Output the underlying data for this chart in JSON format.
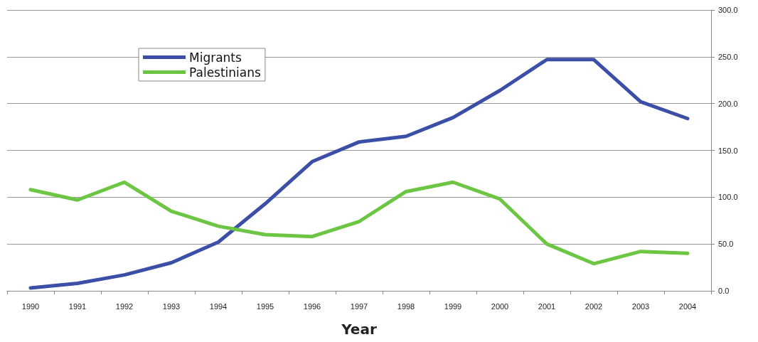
{
  "chart_data": {
    "type": "line",
    "xlabel": "Year",
    "categories": [
      "1990",
      "1991",
      "1992",
      "1993",
      "1994",
      "1995",
      "1996",
      "1997",
      "1998",
      "1999",
      "2000",
      "2001",
      "2002",
      "2003",
      "2004"
    ],
    "series": [
      {
        "name": "Migrants",
        "color": "#3b4fa6",
        "values": [
          3,
          8,
          17,
          30,
          52,
          93,
          138,
          159,
          165,
          185,
          214,
          247,
          247,
          202,
          184
        ]
      },
      {
        "name": "Palestinians",
        "color": "#6cc644",
        "values": [
          108,
          97,
          116,
          85,
          69,
          60,
          58,
          74,
          106,
          116,
          98,
          50,
          29,
          42,
          40
        ]
      }
    ],
    "ylim": [
      0,
      300
    ],
    "yticks": [
      {
        "value": 0,
        "label": "0.0"
      },
      {
        "value": 50,
        "label": "50.0"
      },
      {
        "value": 100,
        "label": "100.0"
      },
      {
        "value": 150,
        "label": "150.0"
      },
      {
        "value": 200,
        "label": "200.0"
      },
      {
        "value": 250,
        "label": "250.0"
      },
      {
        "value": 300,
        "label": "300.0"
      }
    ],
    "grid": "y",
    "legend": "top left",
    "marker": "none",
    "line_style": "solid"
  }
}
